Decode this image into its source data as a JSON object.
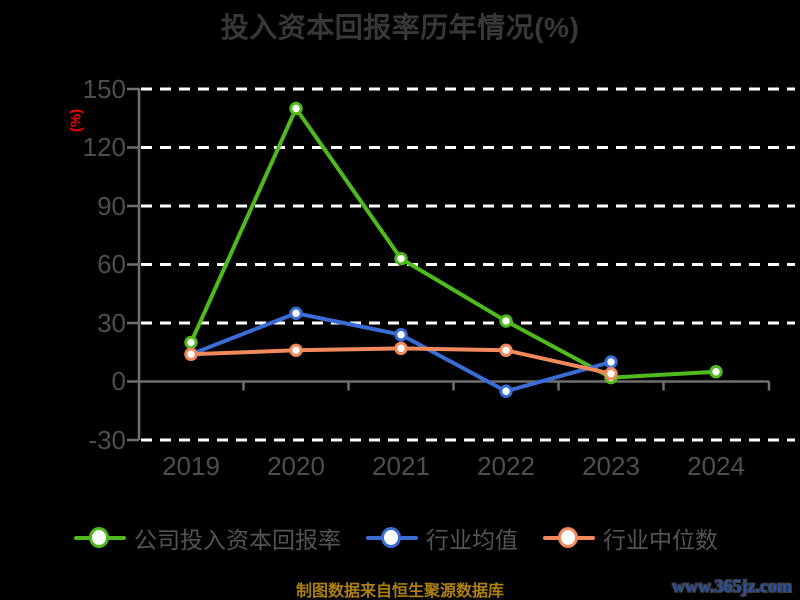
{
  "page": {
    "source_note": "制图数据来自恒生聚源数据库",
    "watermark": "www.365jz.com"
  },
  "colors": {
    "background": "#000000",
    "grid": "#ffffff",
    "axis": "#6f6f6f",
    "title_text": "#383838",
    "tick_text": "#4e4e4e",
    "legend_text": "#545454",
    "ylabel_red": "#f00000",
    "source_gold": "#ab7f12",
    "watermark_blue": "#2d4f9c",
    "marker_fill": "#ffffff"
  },
  "chart_data": {
    "type": "line",
    "title": "投入资本回报率历年情况(%)",
    "ylabel": "(%)",
    "xlabel": "",
    "categories": [
      "2019",
      "2020",
      "2021",
      "2022",
      "2023",
      "2024"
    ],
    "yticks": [
      "150",
      "120",
      "90",
      "60",
      "30",
      "0",
      "-30"
    ],
    "ylim": [
      -30,
      150
    ],
    "grid": "horizontal-dashed-white",
    "legend_position": "bottom",
    "series": [
      {
        "name": "公司投入资本回报率",
        "color": "#4fba1c",
        "marker": "circle-white-fill",
        "values": [
          20,
          140,
          63,
          31,
          2,
          5
        ]
      },
      {
        "name": "行业均值",
        "color": "#3a6cd6",
        "marker": "circle-white-fill",
        "values": [
          14,
          35,
          24,
          -5,
          10,
          null
        ]
      },
      {
        "name": "行业中位数",
        "color": "#f2895c",
        "marker": "circle-white-fill",
        "values": [
          14,
          16,
          17,
          16,
          4,
          null
        ]
      }
    ]
  }
}
